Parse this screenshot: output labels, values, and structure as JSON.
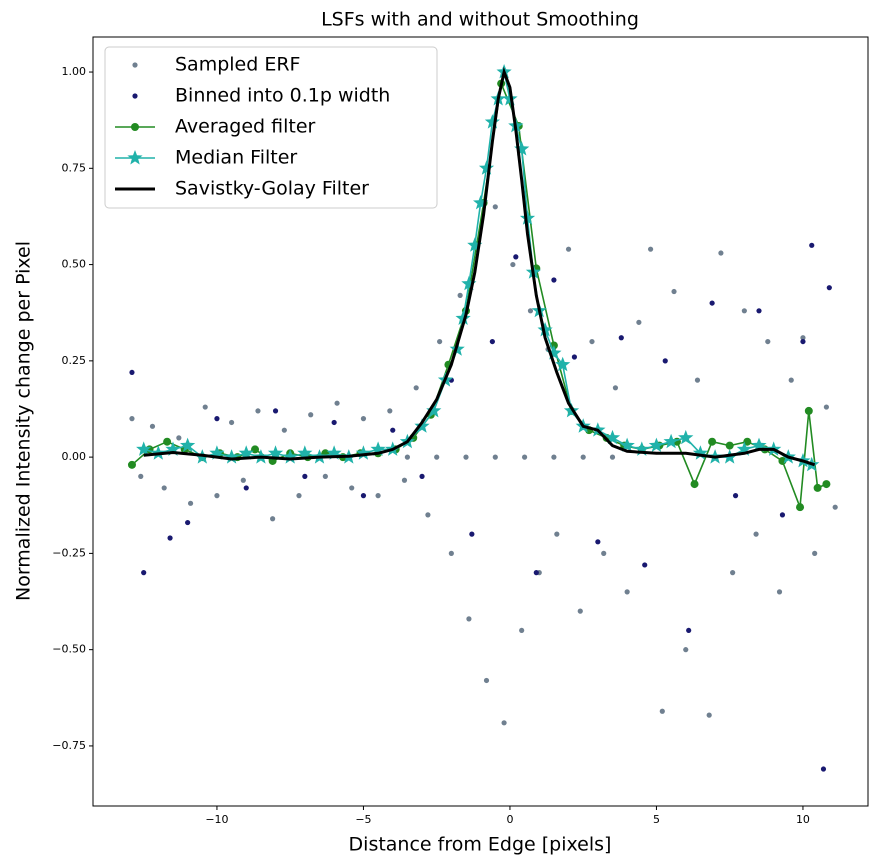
{
  "chart_data": {
    "type": "scatter",
    "title": "LSFs with and without Smoothing",
    "x_label": "Distance from Edge [pixels]",
    "y_label": "Normalized Intensity change per Pixel",
    "xlim": [
      -14.23,
      12.22
    ],
    "ylim": [
      -0.906,
      1.091
    ],
    "xticks": [
      {
        "value": -10,
        "label": "−10"
      },
      {
        "value": -5,
        "label": "−5"
      },
      0,
      5,
      10
    ],
    "yticks": [
      {
        "value": -0.75,
        "label": "−0.75"
      },
      {
        "value": -0.5,
        "label": "−0.50"
      },
      {
        "value": -0.25,
        "label": "−0.25"
      },
      {
        "value": 0,
        "label": "0.00"
      },
      {
        "value": 0.25,
        "label": "0.25"
      },
      {
        "value": 0.5,
        "label": "0.50"
      },
      {
        "value": 0.75,
        "label": "0.75"
      },
      {
        "value": 1.0,
        "label": "1.00"
      }
    ],
    "legend": "upper left",
    "series": [
      {
        "name": "Sampled ERF",
        "color": "#708090",
        "style": "dots",
        "x": [
          -12.9,
          -12.6,
          -12.2,
          -11.8,
          -11.3,
          -10.9,
          -10.4,
          -10,
          -9.5,
          -9.1,
          -8.6,
          -8.1,
          -7.7,
          -7.2,
          -6.8,
          -6.3,
          -5.9,
          -5.4,
          -5,
          -4.5,
          -4.1,
          -3.6,
          -3.2,
          -2.8,
          -2.4,
          -2,
          -1.7,
          -1.4,
          -1.1,
          -0.8,
          -0.5,
          -0.2,
          0.1,
          0.4,
          0.7,
          1,
          1.3,
          1.6,
          2,
          2.4,
          2.8,
          3.2,
          3.6,
          4,
          4.4,
          4.8,
          5.2,
          5.6,
          6,
          6.4,
          6.8,
          7.2,
          7.6,
          8,
          8.4,
          8.8,
          9.2,
          9.6,
          10,
          10.4,
          10.8,
          11.1,
          -3.5,
          -2.5,
          -1.5,
          -0.5,
          0.5,
          1.5,
          2.5,
          3.5
        ],
        "values": [
          0.1,
          -0.05,
          0.08,
          -0.08,
          0.05,
          -0.12,
          0.13,
          -0.1,
          0.09,
          -0.06,
          0.12,
          -0.16,
          0.07,
          -0.1,
          0.11,
          -0.05,
          0.14,
          -0.08,
          0.1,
          -0.1,
          0.12,
          -0.06,
          0.18,
          -0.15,
          0.3,
          -0.25,
          0.42,
          -0.42,
          0.55,
          -0.58,
          0.65,
          -0.69,
          0.5,
          -0.45,
          0.38,
          -0.3,
          0.28,
          -0.2,
          0.54,
          -0.4,
          0.3,
          -0.25,
          0.18,
          -0.35,
          0.35,
          0.54,
          -0.66,
          0.43,
          -0.5,
          0.2,
          -0.67,
          0.53,
          -0.3,
          0.38,
          -0.2,
          0.3,
          -0.35,
          0.2,
          0.31,
          -0.25,
          0.13,
          -0.13,
          0,
          0,
          0,
          0,
          0,
          0,
          0,
          0
        ]
      },
      {
        "name": "Binned into 0.1p width",
        "color": "#191970",
        "style": "dots",
        "x": [
          -12.9,
          -12.5,
          -11.6,
          -11,
          -10,
          -9,
          -8,
          -7,
          -6,
          -5,
          -4,
          -3,
          -2,
          -1.3,
          -0.6,
          0.2,
          0.9,
          1.5,
          2.2,
          3,
          3.8,
          4.6,
          5.3,
          6.1,
          6.9,
          7.7,
          8.5,
          9.3,
          10,
          10.3,
          10.7,
          10.9
        ],
        "values": [
          0.22,
          -0.3,
          -0.21,
          -0.17,
          0.1,
          -0.08,
          0.12,
          -0.05,
          0.09,
          -0.1,
          0.07,
          -0.05,
          0.2,
          -0.2,
          0.3,
          0.52,
          -0.3,
          0.46,
          0.26,
          -0.22,
          0.31,
          -0.28,
          0.25,
          -0.45,
          0.4,
          -0.1,
          0.38,
          -0.15,
          0.3,
          0.55,
          -0.81,
          0.44
        ]
      },
      {
        "name": "Averaged filter",
        "color": "#228b22",
        "style": "line-circle",
        "x": [
          -12.9,
          -12.3,
          -11.7,
          -11.1,
          -10.5,
          -9.9,
          -9.3,
          -8.7,
          -8.1,
          -7.5,
          -6.9,
          -6.3,
          -5.7,
          -5.1,
          -4.5,
          -3.9,
          -3.3,
          -2.7,
          -2.1,
          -1.5,
          -0.9,
          -0.3,
          0.3,
          0.9,
          1.5,
          2.1,
          2.7,
          3.3,
          3.9,
          4.5,
          5.1,
          5.7,
          6.3,
          6.9,
          7.5,
          8.1,
          8.7,
          9.3,
          9.9,
          10.2,
          10.5,
          10.8
        ],
        "values": [
          -0.02,
          0.02,
          0.04,
          0.02,
          0.0,
          0.01,
          0.0,
          0.02,
          -0.01,
          0.01,
          0.0,
          0.01,
          0.0,
          0.01,
          0.01,
          0.02,
          0.05,
          0.11,
          0.24,
          0.38,
          0.66,
          0.97,
          0.86,
          0.49,
          0.29,
          0.12,
          0.07,
          0.05,
          0.03,
          0.02,
          0.03,
          0.04,
          -0.07,
          0.04,
          0.03,
          0.04,
          0.02,
          -0.01,
          -0.13,
          0.12,
          -0.08,
          -0.07
        ]
      },
      {
        "name": "Median Filter",
        "color": "#20b2aa",
        "style": "line-star",
        "x": [
          -12.5,
          -12,
          -11.5,
          -11,
          -10.5,
          -10,
          -9.5,
          -9,
          -8.5,
          -8,
          -7.5,
          -7,
          -6.5,
          -6,
          -5.5,
          -5,
          -4.5,
          -4,
          -3.5,
          -3,
          -2.6,
          -2.2,
          -1.8,
          -1.6,
          -1.4,
          -1.2,
          -1.0,
          -0.8,
          -0.6,
          -0.4,
          -0.2,
          0,
          0.2,
          0.4,
          0.6,
          0.8,
          1.0,
          1.2,
          1.5,
          1.8,
          2.1,
          2.5,
          3,
          3.5,
          4,
          4.5,
          5,
          5.5,
          6,
          6.5,
          7,
          7.5,
          8,
          8.5,
          9,
          9.5,
          10,
          10.3
        ],
        "values": [
          0.02,
          0.01,
          0.02,
          0.03,
          0.0,
          0.01,
          0.0,
          0.01,
          0.0,
          0.01,
          0.0,
          0.01,
          0.0,
          0.01,
          0.0,
          0.01,
          0.02,
          0.02,
          0.04,
          0.08,
          0.12,
          0.2,
          0.28,
          0.36,
          0.45,
          0.55,
          0.66,
          0.75,
          0.87,
          0.93,
          1.0,
          0.93,
          0.86,
          0.8,
          0.62,
          0.48,
          0.38,
          0.33,
          0.27,
          0.24,
          0.12,
          0.08,
          0.07,
          0.05,
          0.03,
          0.02,
          0.03,
          0.04,
          0.05,
          0.01,
          0.0,
          0.0,
          0.02,
          0.03,
          0.02,
          0.0,
          -0.01,
          -0.02
        ]
      },
      {
        "name": "Savistky-Golay Filter",
        "color": "#000000",
        "style": "line",
        "x": [
          -12.5,
          -11.5,
          -10.5,
          -9.5,
          -8.5,
          -7.5,
          -6.5,
          -5.5,
          -4.5,
          -4,
          -3.5,
          -3,
          -2.5,
          -2,
          -1.5,
          -1.2,
          -0.9,
          -0.6,
          -0.4,
          -0.2,
          0,
          0.2,
          0.4,
          0.6,
          0.9,
          1.2,
          1.6,
          2,
          2.5,
          3,
          3.5,
          4,
          5,
          6,
          7,
          8,
          8.5,
          9,
          9.5,
          10,
          10.4
        ],
        "values": [
          0.005,
          0.012,
          0.005,
          -0.005,
          0.0,
          -0.005,
          0.0,
          0.002,
          0.01,
          0.02,
          0.04,
          0.09,
          0.15,
          0.24,
          0.37,
          0.48,
          0.63,
          0.82,
          0.93,
          1.0,
          0.96,
          0.85,
          0.72,
          0.58,
          0.42,
          0.31,
          0.22,
          0.14,
          0.08,
          0.07,
          0.03,
          0.015,
          0.01,
          0.01,
          0.0,
          0.01,
          0.02,
          0.02,
          0.0,
          -0.01,
          -0.02
        ]
      }
    ]
  }
}
